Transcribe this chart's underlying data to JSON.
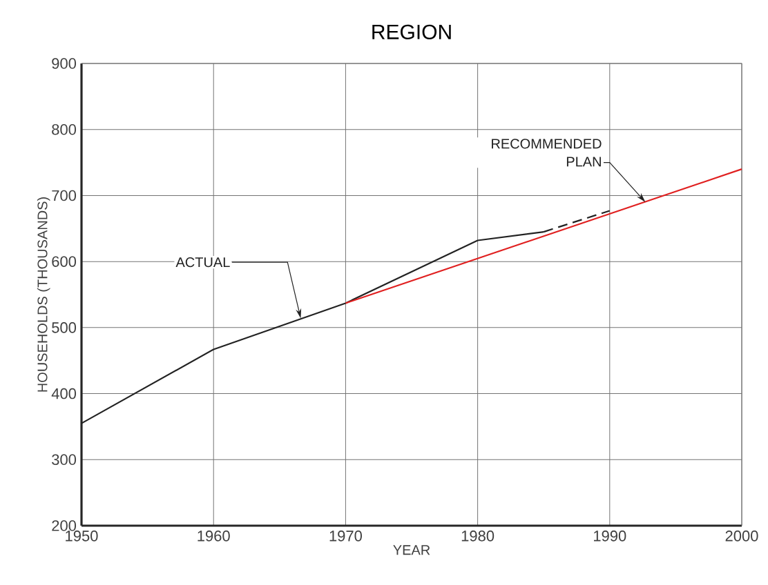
{
  "chart_data": {
    "type": "line",
    "title": "REGION",
    "xlabel": "YEAR",
    "ylabel": "HOUSEHOLDS (THOUSANDS)",
    "xlim": [
      1950,
      2000
    ],
    "xticks": [
      1950,
      1960,
      1970,
      1980,
      1990,
      2000
    ],
    "ylim": [
      200,
      900
    ],
    "yticks": [
      200,
      300,
      400,
      500,
      600,
      700,
      800,
      900
    ],
    "grid": true,
    "series": [
      {
        "color": "#222222",
        "x": [
          1950,
          1960,
          1970,
          1980,
          1985
        ],
        "values": [
          355,
          467,
          537,
          632,
          645
        ],
        "line_style": "solid"
      },
      {
        "color": "#222222",
        "x": [
          1985,
          1990
        ],
        "values": [
          645,
          677
        ],
        "line_style": "dashed"
      },
      {
        "color": "#e02020",
        "x": [
          1970,
          2000
        ],
        "values": [
          537,
          740
        ],
        "line_style": "solid"
      }
    ],
    "annotations": [
      {
        "text": "ACTUAL",
        "x": 1966.6,
        "y": 514
      },
      {
        "text": "RECOMMENDED PLAN",
        "x": 1992.7,
        "y": 690
      }
    ]
  }
}
